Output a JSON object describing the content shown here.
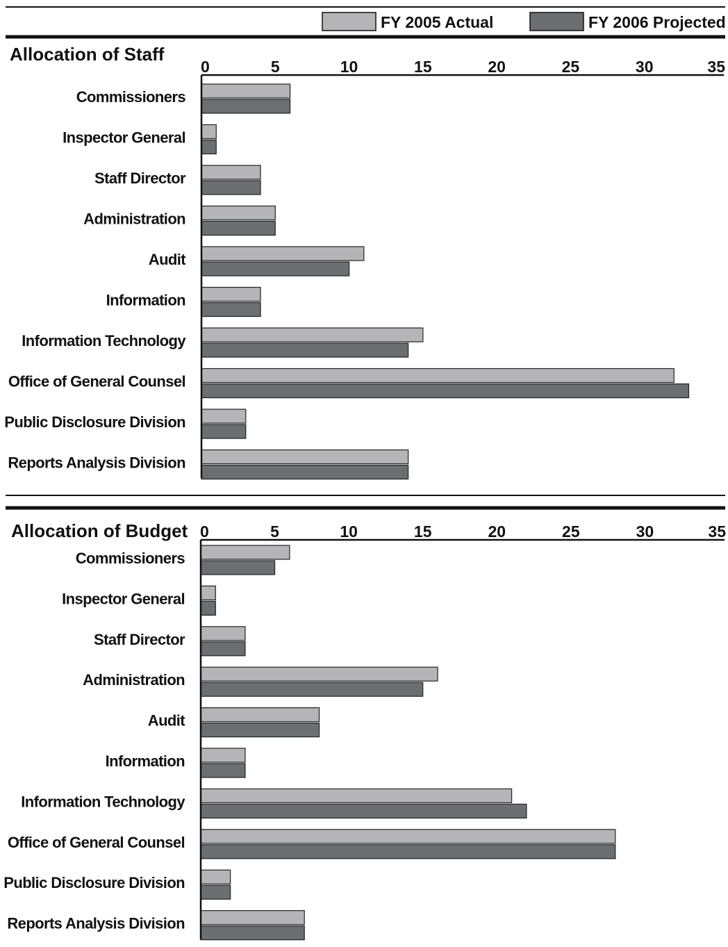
{
  "legend": [
    {
      "label": "FY 2005 Actual",
      "color": "#b5b5b8"
    },
    {
      "label": "FY 2006 Projected",
      "color": "#6d6e71"
    }
  ],
  "chart_data": [
    {
      "type": "bar",
      "orientation": "horizontal",
      "title": "Allocation of Staff",
      "xlim": [
        0,
        35
      ],
      "ticks": [
        0,
        5,
        10,
        15,
        20,
        25,
        30,
        35
      ],
      "categories": [
        "Commissioners",
        "Inspector General",
        "Staff Director",
        "Administration",
        "Audit",
        "Information",
        "Information Technology",
        "Office of General Counsel",
        "Public Disclosure Division",
        "Reports Analysis Division"
      ],
      "series": [
        {
          "name": "FY 2005 Actual",
          "values": [
            6,
            1,
            4,
            5,
            11,
            4,
            15,
            32,
            3,
            14
          ]
        },
        {
          "name": "FY 2006 Projected",
          "values": [
            6,
            1,
            4,
            5,
            10,
            4,
            14,
            33,
            3,
            14
          ]
        }
      ],
      "grid": false,
      "legend_position": "top"
    },
    {
      "type": "bar",
      "orientation": "horizontal",
      "title": "Allocation of Budget",
      "xlim": [
        0,
        35
      ],
      "ticks": [
        0,
        5,
        10,
        15,
        20,
        25,
        30,
        35
      ],
      "categories": [
        "Commissioners",
        "Inspector General",
        "Staff Director",
        "Administration",
        "Audit",
        "Information",
        "Information Technology",
        "Office of General Counsel",
        "Public Disclosure Division",
        "Reports Analysis Division"
      ],
      "series": [
        {
          "name": "FY 2005 Actual",
          "values": [
            6,
            1,
            3,
            16,
            8,
            3,
            21,
            28,
            2,
            7
          ]
        },
        {
          "name": "FY 2006 Projected",
          "values": [
            5,
            1,
            3,
            15,
            8,
            3,
            22,
            28,
            2,
            7
          ]
        }
      ],
      "grid": false,
      "legend_position": "top"
    }
  ]
}
